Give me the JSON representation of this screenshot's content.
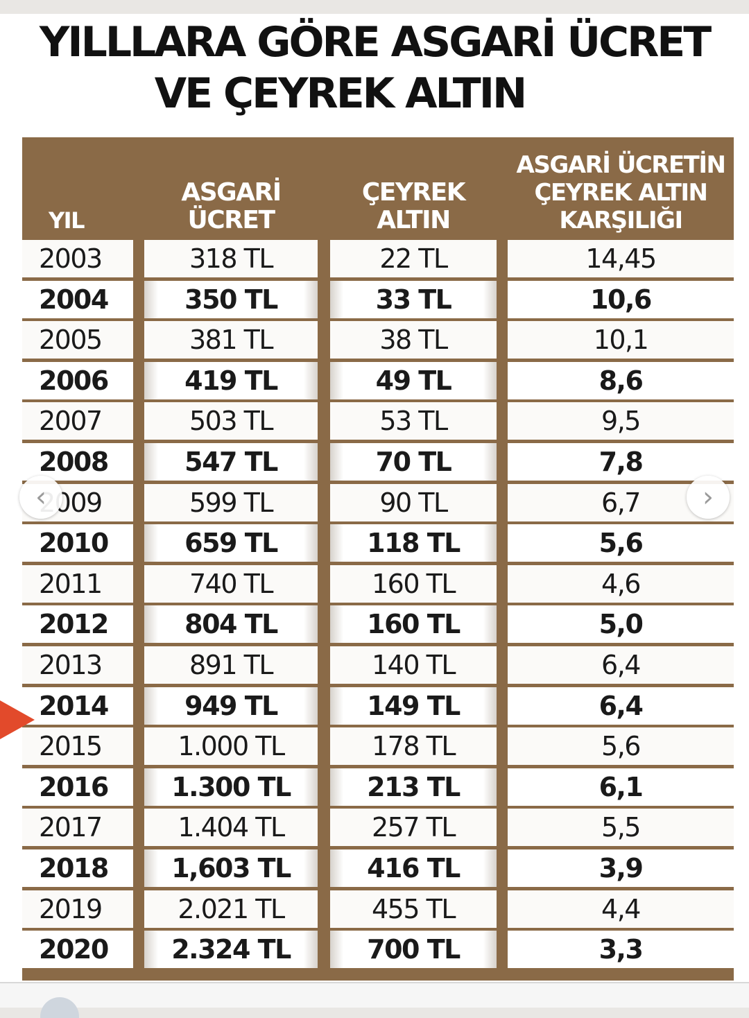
{
  "title": {
    "line1": "YILLLARA GÖRE ASGARİ ÜCRET",
    "line2": "VE ÇEYREK ALTIN"
  },
  "table": {
    "headers": [
      [
        "YIL"
      ],
      [
        "ASGARİ",
        "ÜCRET"
      ],
      [
        "ÇEYREK",
        "ALTIN"
      ],
      [
        "ASGARİ ÜCRETİN",
        "ÇEYREK ALTIN",
        "KARŞILIĞI"
      ]
    ],
    "rows": [
      [
        "2003",
        "318 TL",
        "22 TL",
        "14,45"
      ],
      [
        "2004",
        "350 TL",
        "33 TL",
        "10,6"
      ],
      [
        "2005",
        "381 TL",
        "38 TL",
        "10,1"
      ],
      [
        "2006",
        "419 TL",
        "49 TL",
        "8,6"
      ],
      [
        "2007",
        "503 TL",
        "53 TL",
        "9,5"
      ],
      [
        "2008",
        "547 TL",
        "70 TL",
        "7,8"
      ],
      [
        "2009",
        "599 TL",
        "90 TL",
        "6,7"
      ],
      [
        "2010",
        "659 TL",
        "118 TL",
        "5,6"
      ],
      [
        "2011",
        "740 TL",
        "160 TL",
        "4,6"
      ],
      [
        "2012",
        "804 TL",
        "160 TL",
        "5,0"
      ],
      [
        "2013",
        "891 TL",
        "140 TL",
        "6,4"
      ],
      [
        "2014",
        "949 TL",
        "149 TL",
        "6,4"
      ],
      [
        "2015",
        "1.000 TL",
        "178 TL",
        "5,6"
      ],
      [
        "2016",
        "1.300 TL",
        "213 TL",
        "6,1"
      ],
      [
        "2017",
        "1.404 TL",
        "257 TL",
        "5,5"
      ],
      [
        "2018",
        "1,603 TL",
        "416 TL",
        "3,9"
      ],
      [
        "2019",
        "2.021 TL",
        "455 TL",
        "4,4"
      ],
      [
        "2020",
        "2.324 TL",
        "700 TL",
        "3,3"
      ]
    ]
  },
  "nav": {
    "prev_glyph": "‹",
    "next_glyph": "›",
    "prev_icon": "chevron-left-icon",
    "next_icon": "chevron-right-icon"
  },
  "colors": {
    "header_brown": "#8a6a47",
    "marker_red": "#e24a2b"
  }
}
